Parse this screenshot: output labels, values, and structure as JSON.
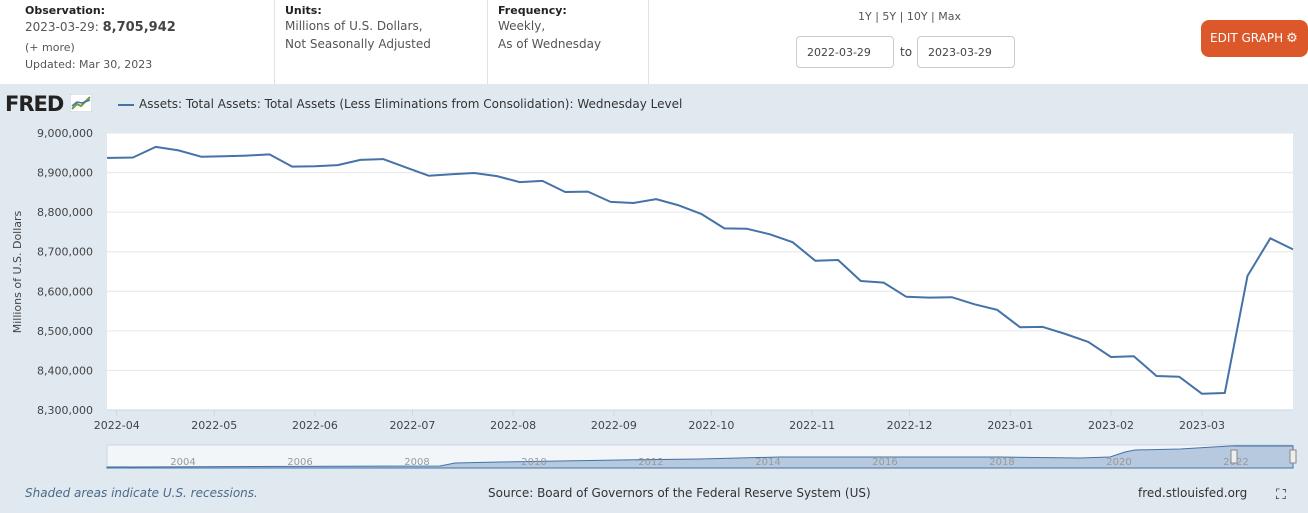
{
  "header": {
    "observation_label": "Observation:",
    "observation_date": "2023-03-29:",
    "observation_value": "8,705,942",
    "more": "(+ more)",
    "updated": "Updated: Mar 30, 2023",
    "units_label": "Units:",
    "units_line1": "Millions of U.S. Dollars,",
    "units_line2": "Not Seasonally Adjusted",
    "frequency_label": "Frequency:",
    "frequency_line1": "Weekly,",
    "frequency_line2": "As of Wednesday"
  },
  "range": {
    "options": [
      "1Y",
      "5Y",
      "10Y",
      "Max"
    ],
    "start": "2022-03-29",
    "to": "to",
    "end": "2023-03-29"
  },
  "edit_button": {
    "label": "EDIT GRAPH",
    "icon": "gear-icon"
  },
  "logo": {
    "text": "FRED",
    "icon": "fred-chart-icon"
  },
  "chart_data": {
    "type": "line",
    "title": "Assets: Total Assets: Total Assets (Less Eliminations from Consolidation): Wednesday Level",
    "ylabel": "Millions of U.S. Dollars",
    "ylim": [
      8300000,
      9000000
    ],
    "yticks": [
      "9,000,000",
      "8,900,000",
      "8,800,000",
      "8,700,000",
      "8,600,000",
      "8,500,000",
      "8,400,000",
      "8,300,000"
    ],
    "xticks": [
      "2022-04",
      "2022-05",
      "2022-06",
      "2022-07",
      "2022-08",
      "2022-09",
      "2022-10",
      "2022-11",
      "2022-12",
      "2023-01",
      "2023-02",
      "2023-03"
    ],
    "grid": true,
    "color": "#4572a7",
    "series": [
      {
        "x": [
          "2022-03-30",
          "2022-04-06",
          "2022-04-13",
          "2022-04-20",
          "2022-04-27",
          "2022-05-04",
          "2022-05-11",
          "2022-05-18",
          "2022-05-25",
          "2022-06-01",
          "2022-06-08",
          "2022-06-15",
          "2022-06-22",
          "2022-06-29",
          "2022-07-06",
          "2022-07-13",
          "2022-07-20",
          "2022-07-27",
          "2022-08-03",
          "2022-08-10",
          "2022-08-17",
          "2022-08-24",
          "2022-08-31",
          "2022-09-07",
          "2022-09-14",
          "2022-09-21",
          "2022-09-28",
          "2022-10-05",
          "2022-10-12",
          "2022-10-19",
          "2022-10-26",
          "2022-11-02",
          "2022-11-09",
          "2022-11-16",
          "2022-11-23",
          "2022-11-30",
          "2022-12-07",
          "2022-12-14",
          "2022-12-21",
          "2022-12-28",
          "2023-01-04",
          "2023-01-11",
          "2023-01-18",
          "2023-01-25",
          "2023-02-01",
          "2023-02-08",
          "2023-02-15",
          "2023-02-22",
          "2023-03-01",
          "2023-03-08",
          "2023-03-15",
          "2023-03-22",
          "2023-03-29"
        ],
        "values": [
          8937000,
          8938000,
          8965000,
          8956000,
          8940000,
          8941000,
          8943000,
          8946000,
          8915000,
          8916000,
          8919000,
          8932000,
          8934000,
          8913000,
          8892000,
          8896000,
          8899000,
          8891000,
          8876000,
          8879000,
          8851000,
          8852000,
          8826000,
          8823000,
          8833000,
          8817000,
          8795000,
          8759000,
          8758000,
          8744000,
          8724000,
          8677000,
          8679000,
          8626000,
          8622000,
          8586000,
          8584000,
          8585000,
          8567000,
          8553000,
          8509000,
          8510000,
          8492000,
          8472000,
          8434000,
          8436000,
          8386000,
          8384000,
          8341000,
          8343000,
          8639000,
          8734000,
          8705942
        ]
      }
    ]
  },
  "navigator": {
    "years": [
      "2004",
      "2006",
      "2008",
      "2010",
      "2012",
      "2014",
      "2016",
      "2018",
      "2020",
      "2022"
    ]
  },
  "footer": {
    "recession_note": "Shaded areas indicate U.S. recessions.",
    "source": "Source: Board of Governors of the Federal Reserve System (US)",
    "site": "fred.stlouisfed.org",
    "fullscreen_icon": "fullscreen-icon"
  }
}
